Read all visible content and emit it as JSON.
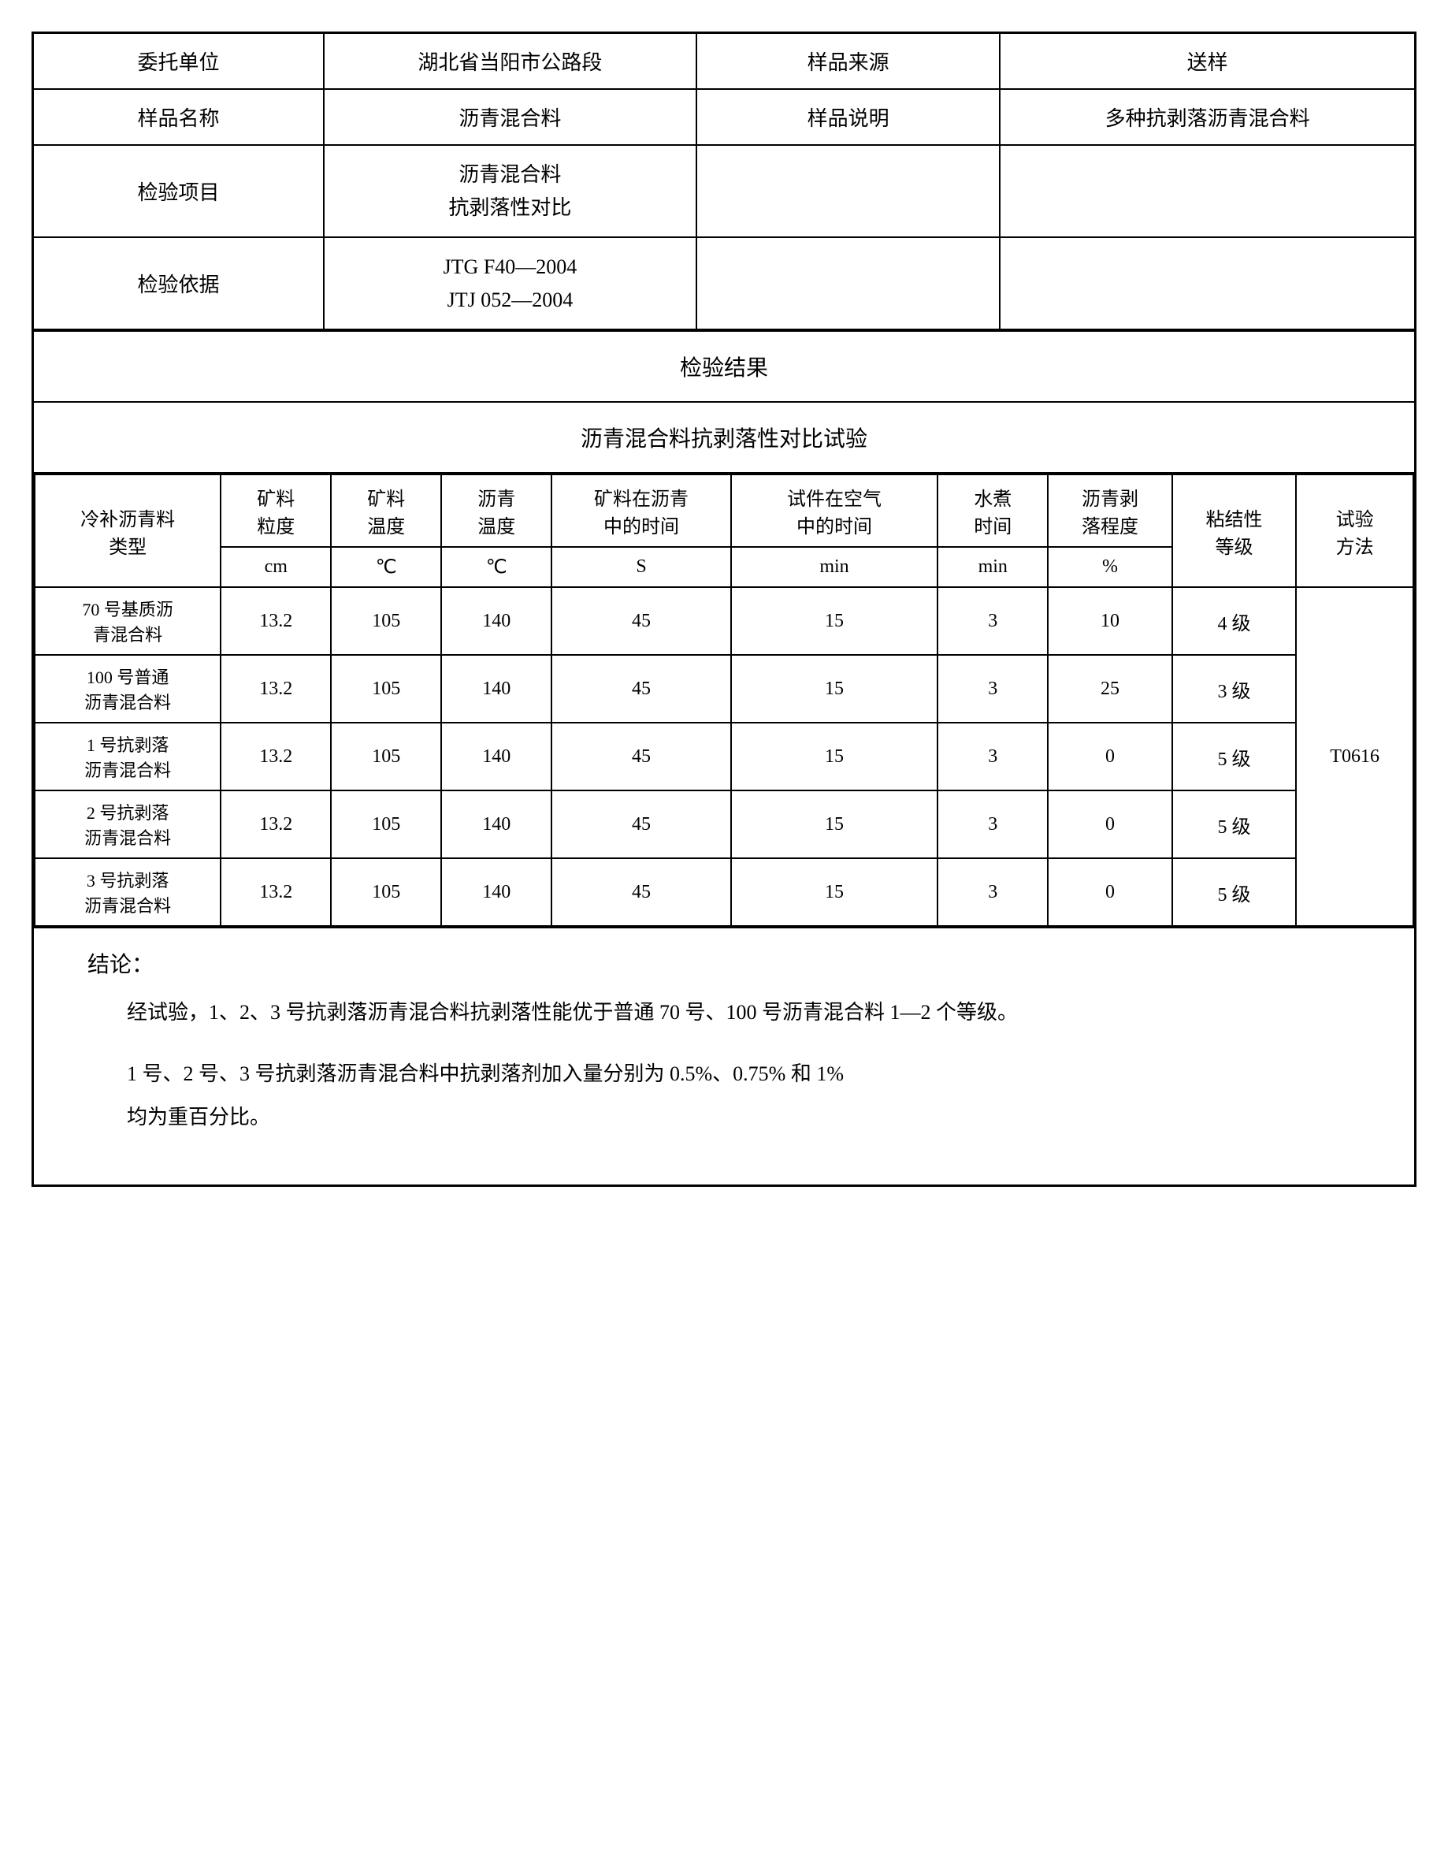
{
  "header": {
    "rows": [
      {
        "label1": "委托单位",
        "value1": "湖北省当阳市公路段",
        "label2": "样品来源",
        "value2": "送样"
      },
      {
        "label1": "样品名称",
        "value1": "沥青混合料",
        "label2": "样品说明",
        "value2": "多种抗剥落沥青混合料"
      },
      {
        "label1": "检验项目",
        "value1": "沥青混合料\n抗剥落性对比",
        "label2": "",
        "value2": ""
      },
      {
        "label1": "检验依据",
        "value1": "JTG F40—2004\nJTJ 052—2004",
        "label2": "",
        "value2": ""
      }
    ]
  },
  "section_titles": {
    "results": "检验结果",
    "test_name": "沥青混合料抗剥落性对比试验"
  },
  "data_table": {
    "col_widths": [
      "13.5%",
      "8%",
      "8%",
      "8%",
      "13%",
      "15%",
      "8%",
      "9%",
      "9%",
      "8.5%"
    ],
    "head_row1": [
      "冷补沥青料\n类型",
      "矿料\n粒度",
      "矿料\n温度",
      "沥青\n温度",
      "矿料在沥青\n中的时间",
      "试件在空气\n中的时间",
      "水煮\n时间",
      "沥青剥\n落程度",
      "粘结性\n等级",
      "试验\n方法"
    ],
    "head_row2": [
      "cm",
      "℃",
      "℃",
      "S",
      "min",
      "min",
      "%"
    ],
    "rows": [
      [
        "70 号基质沥\n青混合料",
        "13.2",
        "105",
        "140",
        "45",
        "15",
        "3",
        "10",
        "4 级"
      ],
      [
        "100 号普通\n沥青混合料",
        "13.2",
        "105",
        "140",
        "45",
        "15",
        "3",
        "25",
        "3 级"
      ],
      [
        "1 号抗剥落\n沥青混合料",
        "13.2",
        "105",
        "140",
        "45",
        "15",
        "3",
        "0",
        "5 级"
      ],
      [
        "2 号抗剥落\n沥青混合料",
        "13.2",
        "105",
        "140",
        "45",
        "15",
        "3",
        "0",
        "5 级"
      ],
      [
        "3 号抗剥落\n沥青混合料",
        "13.2",
        "105",
        "140",
        "45",
        "15",
        "3",
        "0",
        "5 级"
      ]
    ],
    "method": "T0616"
  },
  "conclusion": {
    "title": "结论：",
    "p1": "经试验，1、2、3 号抗剥落沥青混合料抗剥落性能优于普通 70 号、100 号沥青混合料 1—2 个等级。",
    "p2": "1 号、2 号、3 号抗剥落沥青混合料中抗剥落剂加入量分别为 0.5%、0.75% 和 1%",
    "p3": "均为重百分比。"
  }
}
